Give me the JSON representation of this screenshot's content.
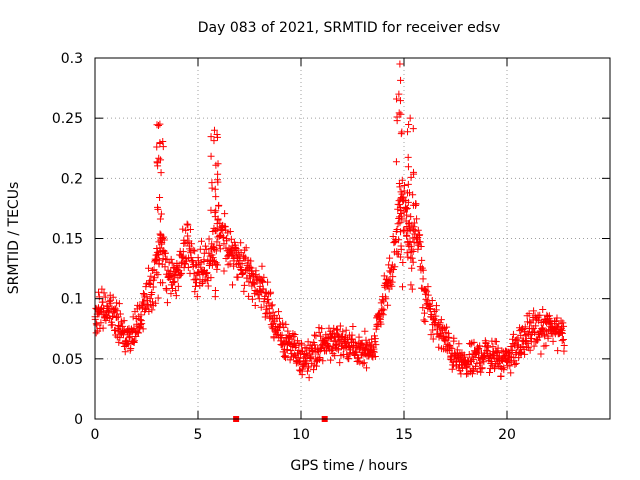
{
  "chart_data": {
    "type": "scatter",
    "title": "Day 083 of 2021, SRMTID for receiver edsv",
    "xlabel": "GPS time / hours",
    "ylabel": "SRMTID / TECUs",
    "xlim": [
      0,
      25
    ],
    "ylim": [
      0,
      0.3
    ],
    "x_ticks": [
      0,
      5,
      10,
      15,
      20
    ],
    "y_ticks": [
      0,
      0.05,
      0.1,
      0.15,
      0.2,
      0.25,
      0.3
    ],
    "x_tick_labels": [
      "0",
      "5",
      "10",
      "15",
      "20"
    ],
    "y_tick_labels": [
      "0",
      "0.05",
      "0.1",
      "0.15",
      "0.2",
      "0.25",
      "0.3"
    ],
    "grid": true,
    "marker": "+",
    "color": "#ff0000",
    "series": [
      {
        "name": "SRMTID",
        "trend_points": [
          [
            0.0,
            0.085
          ],
          [
            0.5,
            0.09
          ],
          [
            1.0,
            0.085
          ],
          [
            1.5,
            0.065
          ],
          [
            2.0,
            0.075
          ],
          [
            2.5,
            0.1
          ],
          [
            3.0,
            0.12
          ],
          [
            3.2,
            0.15
          ],
          [
            3.5,
            0.12
          ],
          [
            4.0,
            0.12
          ],
          [
            4.5,
            0.14
          ],
          [
            5.0,
            0.12
          ],
          [
            5.5,
            0.13
          ],
          [
            6.0,
            0.16
          ],
          [
            6.5,
            0.14
          ],
          [
            7.0,
            0.13
          ],
          [
            7.5,
            0.12
          ],
          [
            8.0,
            0.11
          ],
          [
            8.5,
            0.09
          ],
          [
            9.0,
            0.07
          ],
          [
            9.5,
            0.06
          ],
          [
            10.0,
            0.05
          ],
          [
            10.5,
            0.055
          ],
          [
            11.0,
            0.06
          ],
          [
            11.5,
            0.065
          ],
          [
            12.0,
            0.065
          ],
          [
            12.5,
            0.06
          ],
          [
            13.0,
            0.055
          ],
          [
            13.5,
            0.06
          ],
          [
            14.0,
            0.1
          ],
          [
            14.5,
            0.13
          ],
          [
            14.9,
            0.19
          ],
          [
            15.3,
            0.15
          ],
          [
            15.6,
            0.16
          ],
          [
            16.0,
            0.1
          ],
          [
            16.5,
            0.08
          ],
          [
            17.0,
            0.065
          ],
          [
            17.5,
            0.05
          ],
          [
            18.0,
            0.045
          ],
          [
            18.5,
            0.05
          ],
          [
            19.0,
            0.055
          ],
          [
            19.5,
            0.05
          ],
          [
            20.0,
            0.05
          ],
          [
            20.5,
            0.06
          ],
          [
            21.0,
            0.07
          ],
          [
            21.5,
            0.075
          ],
          [
            22.0,
            0.075
          ],
          [
            22.5,
            0.075
          ],
          [
            22.8,
            0.07
          ]
        ],
        "spread": 0.045,
        "x_range": [
          0,
          22.8
        ],
        "count": 1400
      }
    ],
    "peaks": [
      {
        "x": 3.15,
        "y": 0.245
      },
      {
        "x": 5.8,
        "y": 0.24
      },
      {
        "x": 14.8,
        "y": 0.295
      },
      {
        "x": 15.3,
        "y": 0.25
      }
    ],
    "gap_markers": [
      {
        "x": 6.85,
        "y": 0
      },
      {
        "x": 11.15,
        "y": 0
      }
    ]
  }
}
